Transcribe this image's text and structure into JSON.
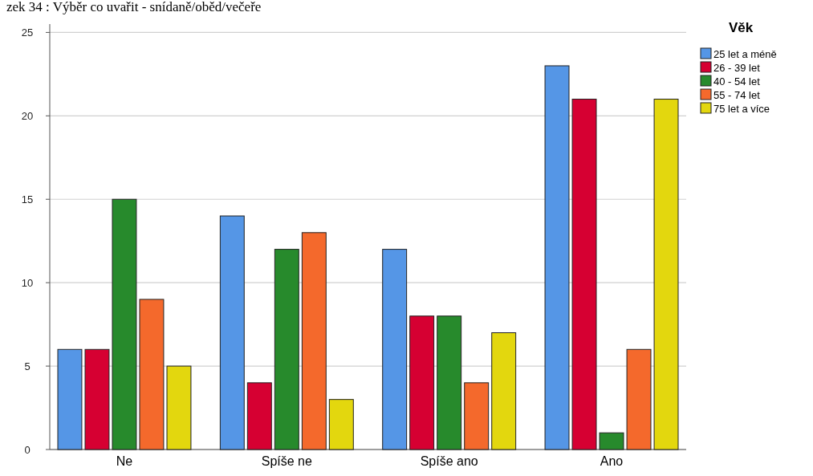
{
  "chart_data": {
    "type": "bar",
    "title": "zek 34 : Výběr co uvařit - snídaně/oběd/večeře",
    "legend_title": "Věk",
    "categories": [
      "Ne",
      "Spíše ne",
      "Spíše ano",
      "Ano"
    ],
    "series": [
      {
        "name": "25 let a méně",
        "color": "#5596e6",
        "values": [
          6,
          14,
          12,
          23
        ]
      },
      {
        "name": "26 - 39 let",
        "color": "#d60032",
        "values": [
          6,
          4,
          8,
          21
        ]
      },
      {
        "name": "40 - 54 let",
        "color": "#278a2c",
        "values": [
          15,
          12,
          8,
          1
        ]
      },
      {
        "name": "55 - 74 let",
        "color": "#f4692c",
        "values": [
          9,
          13,
          4,
          6
        ]
      },
      {
        "name": "75 let a více",
        "color": "#e3d70e",
        "values": [
          5,
          3,
          7,
          21
        ]
      }
    ],
    "ylim": [
      0,
      25.5
    ],
    "yticks": [
      0,
      5,
      10,
      15,
      20,
      25
    ],
    "grid": "y",
    "legend": "top right"
  }
}
